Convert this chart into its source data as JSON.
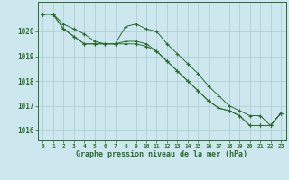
{
  "hours": [
    0,
    1,
    2,
    3,
    4,
    5,
    6,
    7,
    8,
    9,
    10,
    11,
    12,
    13,
    14,
    15,
    16,
    17,
    18,
    19,
    20,
    21,
    22,
    23
  ],
  "line1": [
    1020.7,
    1020.7,
    1020.3,
    1020.1,
    1019.9,
    1019.6,
    1019.5,
    1019.5,
    1020.2,
    1020.3,
    1020.1,
    1020.0,
    1019.5,
    1019.1,
    1018.7,
    1018.3,
    1017.8,
    1017.4,
    1017.0,
    1016.8,
    1016.6,
    1016.6,
    1016.2,
    1016.7
  ],
  "line2": [
    1020.7,
    1020.7,
    1020.1,
    1019.8,
    1019.5,
    1019.5,
    1019.5,
    1019.5,
    1019.5,
    1019.5,
    1019.4,
    1019.2,
    1018.8,
    1018.4,
    1018.0,
    1017.6,
    1017.2,
    1016.9,
    1016.8,
    1016.6,
    1016.2,
    1016.2,
    1016.2,
    1016.7
  ],
  "line3": [
    1020.7,
    1020.7,
    1020.1,
    1019.8,
    1019.5,
    1019.5,
    1019.5,
    1019.5,
    1019.6,
    1019.6,
    1019.5,
    1019.2,
    1018.8,
    1018.4,
    1018.0,
    1017.6,
    1017.2,
    1016.9,
    1016.8,
    1016.6,
    1016.2,
    1016.2,
    1016.2,
    1016.7
  ],
  "ylim": [
    1015.6,
    1021.2
  ],
  "yticks": [
    1016,
    1017,
    1018,
    1019,
    1020
  ],
  "xlabel": "Graphe pression niveau de la mer (hPa)",
  "line_color": "#2d6a2d",
  "bg_color": "#cce8ee",
  "grid_color": "#aaccd0",
  "tick_label_color": "#2d6a2d",
  "xlabel_color": "#2d6a2d",
  "fig_width": 3.2,
  "fig_height": 2.0,
  "dpi": 100
}
